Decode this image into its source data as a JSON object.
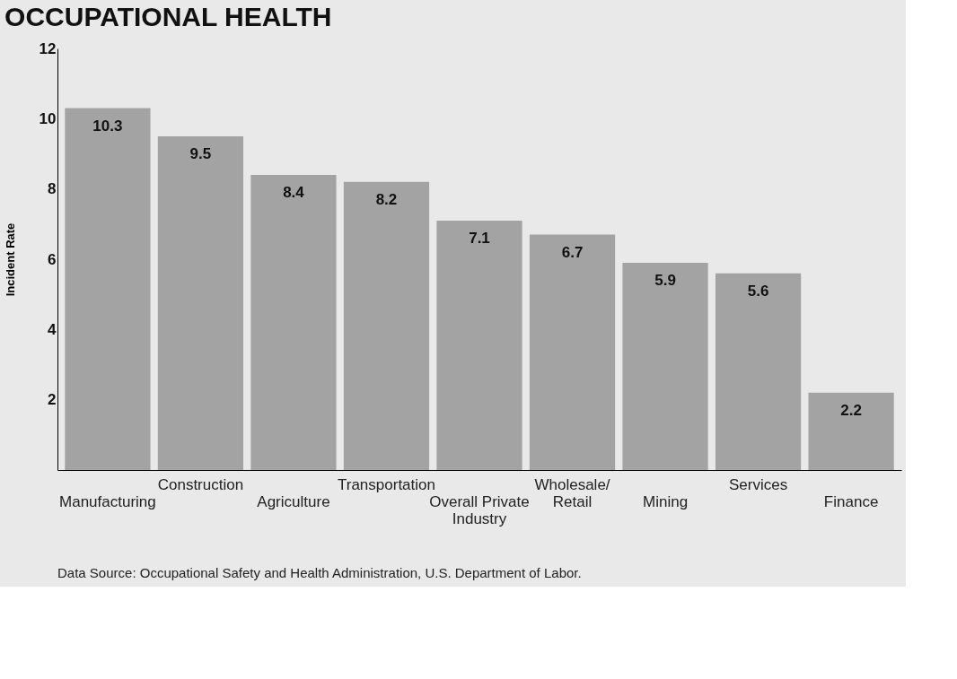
{
  "chart_data": {
    "type": "bar",
    "title": "OCCUPATIONAL HEALTH",
    "ylabel": "Incident Rate",
    "categories": [
      "Manufacturing",
      "Construction",
      "Agriculture",
      "Transportation",
      "Overall Private Industry",
      "Wholesale/ Retail",
      "Mining",
      "Services",
      "Finance"
    ],
    "values": [
      10.3,
      9.5,
      8.4,
      8.2,
      7.1,
      6.7,
      5.9,
      5.6,
      2.2
    ],
    "color": "#a3a3a3",
    "ylim": [
      0,
      12
    ],
    "yticks": [
      2,
      4,
      6,
      8,
      10,
      12
    ],
    "grid": false,
    "data_labels": true,
    "annotations": [
      "Data Source: Occupational Safety and Health Administration, U.S. Department of Labor."
    ]
  }
}
